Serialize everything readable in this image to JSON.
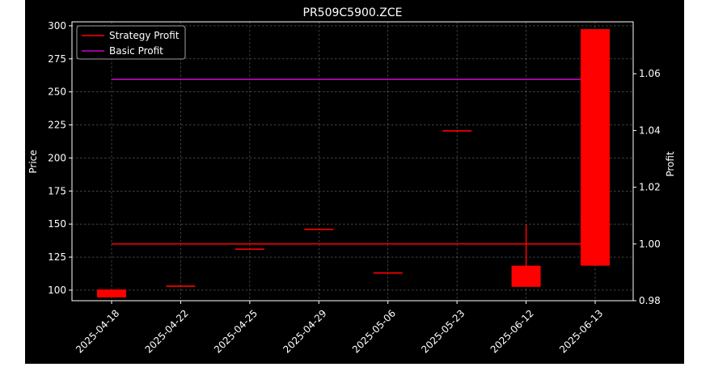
{
  "chart_data": {
    "type": "candlestick",
    "title": "PR509C5900.ZCE",
    "ylabel_left": "Price",
    "ylabel_right": "Profit",
    "categories": [
      "2025-04-18",
      "2025-04-22",
      "2025-04-25",
      "2025-04-29",
      "2025-05-06",
      "2025-05-23",
      "2025-06-12",
      "2025-06-13"
    ],
    "candles": [
      {
        "open": 100.5,
        "close": 94.5,
        "high": 100.5,
        "low": 94.5
      },
      {
        "open": 102.5,
        "close": 103.5,
        "high": 103.5,
        "low": 102.5
      },
      {
        "open": 130.5,
        "close": 131.5,
        "high": 131.5,
        "low": 130.5
      },
      {
        "open": 145.5,
        "close": 146.5,
        "high": 146.5,
        "low": 145.5
      },
      {
        "open": 112.5,
        "close": 113.5,
        "high": 113.5,
        "low": 112.5
      },
      {
        "open": 220.0,
        "close": 221.0,
        "high": 221.0,
        "low": 220.0
      },
      {
        "open": 102.5,
        "close": 118.5,
        "high": 149.5,
        "low": 102.5
      },
      {
        "open": 118.5,
        "close": 297.5,
        "high": 297.5,
        "low": 118.5
      }
    ],
    "series": [
      {
        "name": "Strategy Profit",
        "axis": "right",
        "color": "#ff0000",
        "values": [
          1.0,
          1.0,
          1.0,
          1.0,
          1.0,
          1.0,
          1.0,
          1.0
        ]
      },
      {
        "name": "Basic Profit",
        "axis": "right",
        "color": "#cc00cc",
        "values": [
          1.058,
          1.058,
          1.058,
          1.058,
          1.058,
          1.058,
          1.058,
          1.058
        ]
      }
    ],
    "ylim_left": [
      92,
      303
    ],
    "ylim_right": [
      0.98,
      1.0783
    ],
    "yticks_left": [
      100,
      125,
      150,
      175,
      200,
      225,
      250,
      275,
      300
    ],
    "yticks_right": [
      0.98,
      1.0,
      1.02,
      1.04,
      1.06
    ],
    "yticklabels_right": [
      "0.98",
      "1.00",
      "1.02",
      "1.04",
      "1.06"
    ],
    "grid": true,
    "legend_position": "top-left",
    "candle_color": "#ff0000",
    "background": "#000000",
    "text_color": "#ffffff"
  }
}
